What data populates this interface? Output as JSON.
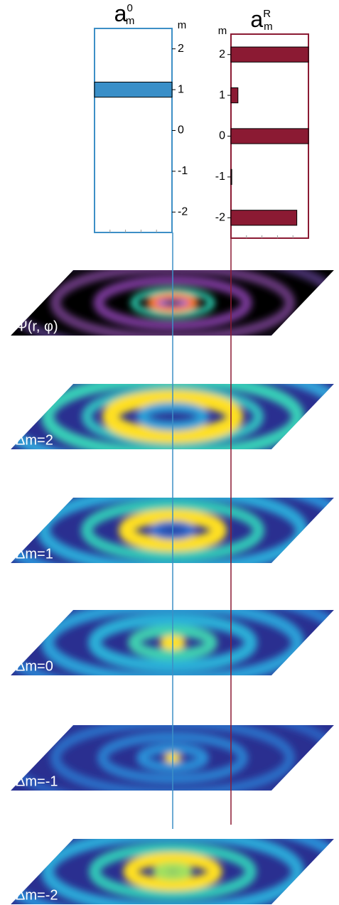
{
  "chart_data": [
    {
      "type": "hbar",
      "title": "a",
      "title_superscript": "0",
      "title_subscript": "m",
      "y_label": "m",
      "y": [
        2,
        1,
        0,
        -1,
        -2
      ],
      "values": [
        0,
        1,
        0,
        0,
        0
      ],
      "color": "#3a8fc8",
      "frame_color": "#3d8fc6",
      "xlim": [
        0,
        1
      ],
      "ylim": [
        -2.5,
        2.5
      ],
      "yticks": [
        2,
        1,
        0,
        -1,
        -2
      ],
      "y_axis_side": "right"
    },
    {
      "type": "hbar",
      "title": "a",
      "title_superscript": "R",
      "title_subscript": "m",
      "y_label": "m",
      "y": [
        2,
        1,
        0,
        -1,
        -2
      ],
      "values": [
        1,
        0.09,
        1,
        0.01,
        0.85
      ],
      "color": "#8b1a33",
      "frame_color": "#8b1a33",
      "xlim": [
        0,
        1
      ],
      "ylim": [
        -2.5,
        2.5
      ],
      "yticks": [
        2,
        1,
        0,
        -1,
        -2
      ],
      "y_axis_side": "left"
    }
  ],
  "panels": [
    {
      "label": "Ψ(r, φ)"
    },
    {
      "label": "Δm=2"
    },
    {
      "label": "Δm=1"
    },
    {
      "label": "Δm=0"
    },
    {
      "label": "Δm=-1"
    },
    {
      "label": "Δm=-2"
    }
  ]
}
